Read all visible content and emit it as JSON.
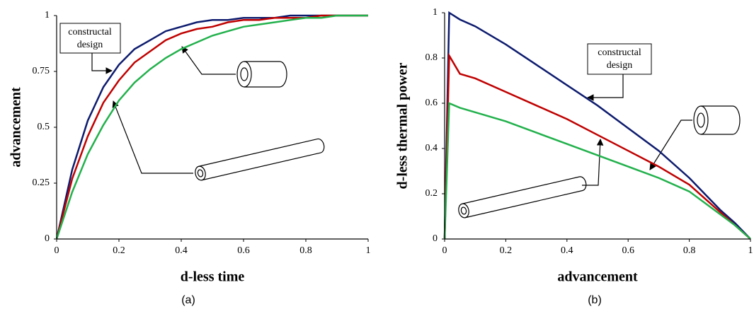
{
  "chart_data": [
    {
      "type": "line",
      "xlabel": "d-less time",
      "ylabel": "advancement",
      "caption": "(a)",
      "annotation": [
        "constructal",
        "design"
      ],
      "x": [
        0,
        0.05,
        0.1,
        0.15,
        0.2,
        0.25,
        0.3,
        0.35,
        0.4,
        0.45,
        0.5,
        0.55,
        0.6,
        0.65,
        0.7,
        0.75,
        0.8,
        0.85,
        0.9,
        0.95,
        1
      ],
      "series": [
        {
          "color": "#0d1b6e",
          "values": [
            0,
            0.31,
            0.53,
            0.68,
            0.78,
            0.85,
            0.89,
            0.93,
            0.95,
            0.97,
            0.98,
            0.98,
            0.99,
            0.99,
            0.99,
            1,
            1,
            1,
            1,
            1,
            1
          ]
        },
        {
          "color": "#c00000",
          "values": [
            0,
            0.27,
            0.46,
            0.61,
            0.71,
            0.79,
            0.84,
            0.89,
            0.92,
            0.94,
            0.95,
            0.97,
            0.98,
            0.98,
            0.99,
            0.99,
            0.99,
            1,
            1,
            1,
            1
          ]
        },
        {
          "color": "#22b14c",
          "values": [
            0,
            0.21,
            0.38,
            0.51,
            0.62,
            0.7,
            0.76,
            0.81,
            0.85,
            0.88,
            0.91,
            0.93,
            0.95,
            0.96,
            0.97,
            0.98,
            0.99,
            0.99,
            1,
            1,
            1
          ]
        }
      ],
      "xlim": [
        0,
        1
      ],
      "xticks": [
        0,
        0.2,
        0.4,
        0.6,
        0.8,
        1
      ],
      "ylim": [
        0,
        1
      ],
      "yticks": [
        0,
        0.25,
        0.5,
        0.75,
        1
      ]
    },
    {
      "type": "line",
      "xlabel": "advancement",
      "ylabel": "d-less thermal power",
      "caption": "(b)",
      "annotation": [
        "constructal",
        "design"
      ],
      "x": [
        0,
        0.015,
        0.05,
        0.1,
        0.2,
        0.3,
        0.4,
        0.5,
        0.6,
        0.7,
        0.8,
        0.85,
        0.9,
        0.95,
        1
      ],
      "series": [
        {
          "color": "#0d1b6e",
          "values": [
            0,
            1,
            0.97,
            0.94,
            0.86,
            0.77,
            0.68,
            0.59,
            0.49,
            0.39,
            0.27,
            0.2,
            0.13,
            0.07,
            0
          ]
        },
        {
          "color": "#c00000",
          "values": [
            0,
            0.81,
            0.73,
            0.71,
            0.65,
            0.59,
            0.53,
            0.46,
            0.39,
            0.32,
            0.24,
            0.18,
            0.12,
            0.06,
            0
          ]
        },
        {
          "color": "#22b14c",
          "values": [
            0,
            0.6,
            0.58,
            0.56,
            0.52,
            0.47,
            0.42,
            0.37,
            0.32,
            0.27,
            0.21,
            0.16,
            0.11,
            0.06,
            0
          ]
        }
      ],
      "xlim": [
        0,
        1
      ],
      "xticks": [
        0,
        0.2,
        0.4,
        0.6,
        0.8,
        1
      ],
      "ylim": [
        0,
        1
      ],
      "yticks": [
        0,
        0.2,
        0.4,
        0.6,
        0.8,
        1
      ]
    }
  ]
}
